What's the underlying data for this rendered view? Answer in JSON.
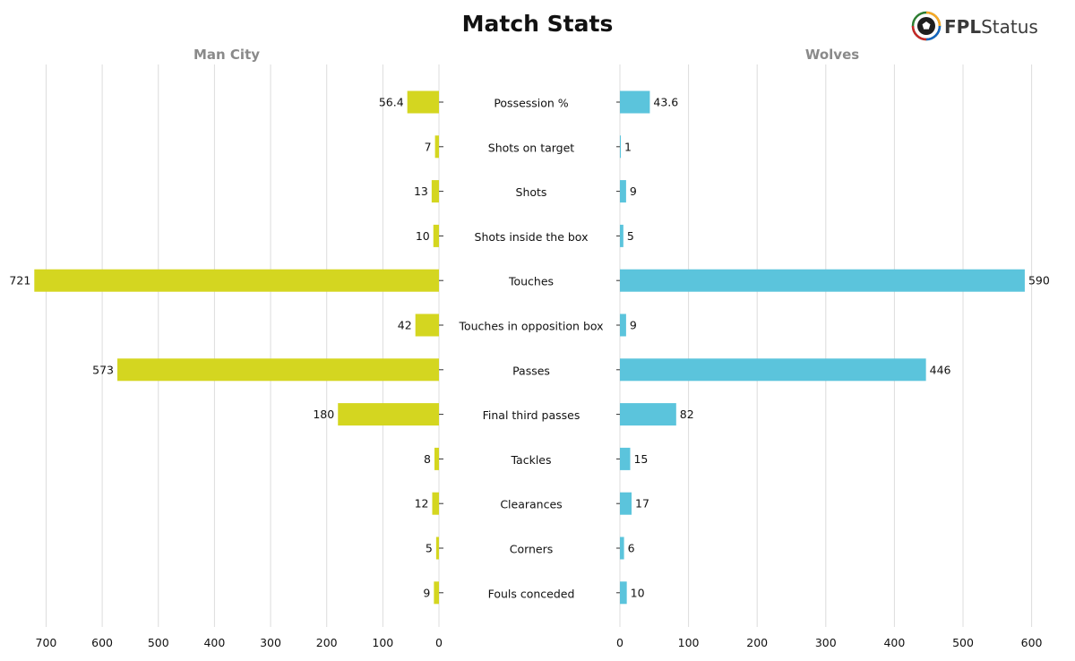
{
  "title": "Match Stats",
  "logo": {
    "brand_bold": "FPL",
    "brand_light": "Status",
    "icon": "soccer-ball-icon",
    "icon_colors": [
      "#2e7d32",
      "#f9a825",
      "#1565c0",
      "#c62828"
    ]
  },
  "chart_data": {
    "type": "bar",
    "orientation": "horizontal-diverging",
    "categories": [
      "Possession %",
      "Shots on target",
      "Shots",
      "Shots inside the box",
      "Touches",
      "Touches in opposition box",
      "Passes",
      "Final third passes",
      "Tackles",
      "Clearances",
      "Corners",
      "Fouls conceded"
    ],
    "series": [
      {
        "name": "Man City",
        "color": "#d4d620",
        "labels": [
          "56.4",
          "7",
          "13",
          "10",
          "721",
          "42",
          "573",
          "180",
          "8",
          "12",
          "5",
          "9"
        ],
        "values": [
          56.4,
          7,
          13,
          10,
          721,
          42,
          573,
          180,
          8,
          12,
          5,
          9
        ]
      },
      {
        "name": "Wolves",
        "color": "#5bc4dc",
        "labels": [
          "43.6",
          "1",
          "9",
          "5",
          "590",
          "9",
          "446",
          "82",
          "15",
          "17",
          "6",
          "10"
        ],
        "values": [
          43.6,
          1,
          9,
          5,
          590,
          9,
          446,
          82,
          15,
          17,
          6,
          10
        ]
      }
    ],
    "left_axis": {
      "range": [
        0,
        721
      ],
      "ticks": [
        0,
        100,
        200,
        300,
        400,
        500,
        600,
        700
      ],
      "reversed": true
    },
    "right_axis": {
      "range": [
        0,
        590
      ],
      "ticks": [
        0,
        100,
        200,
        300,
        400,
        500,
        600
      ]
    },
    "grid": true,
    "legend": "none"
  }
}
